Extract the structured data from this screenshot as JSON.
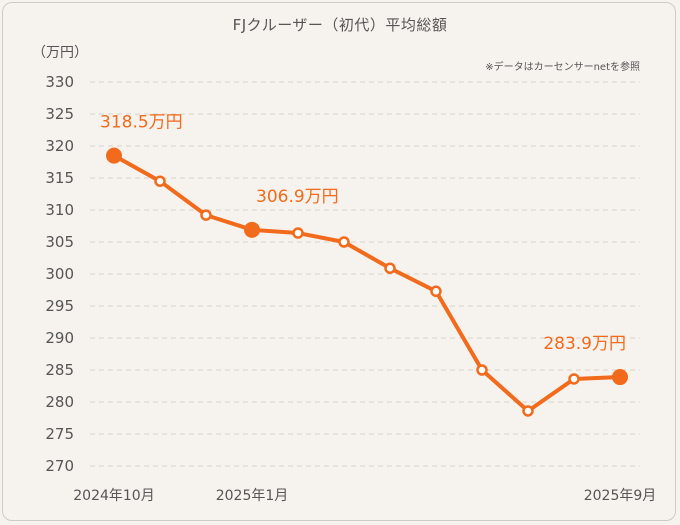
{
  "chart_data": {
    "type": "line",
    "title": "FJクルーザー（初代）平均総額",
    "ylabel": "（万円）",
    "note": "※データはカーセンサーnetを参照",
    "ylim": [
      270,
      330
    ],
    "yticks": [
      330,
      325,
      320,
      315,
      310,
      305,
      300,
      295,
      290,
      285,
      280,
      275,
      270
    ],
    "x_labels": [
      {
        "index": 0,
        "label": "2024年10月"
      },
      {
        "index": 3,
        "label": "2025年1月"
      },
      {
        "index": 11,
        "label": "2025年9月"
      }
    ],
    "series": [
      {
        "name": "平均総額",
        "color": "#f26a1b",
        "values": [
          318.5,
          314.5,
          309.2,
          306.9,
          306.4,
          305.0,
          300.9,
          297.3,
          285.0,
          278.6,
          283.6,
          283.9
        ]
      }
    ],
    "highlights": [
      {
        "index": 0,
        "label": "318.5万円"
      },
      {
        "index": 3,
        "label": "306.9万円"
      },
      {
        "index": 11,
        "label": "283.9万円"
      }
    ],
    "grid": true
  }
}
